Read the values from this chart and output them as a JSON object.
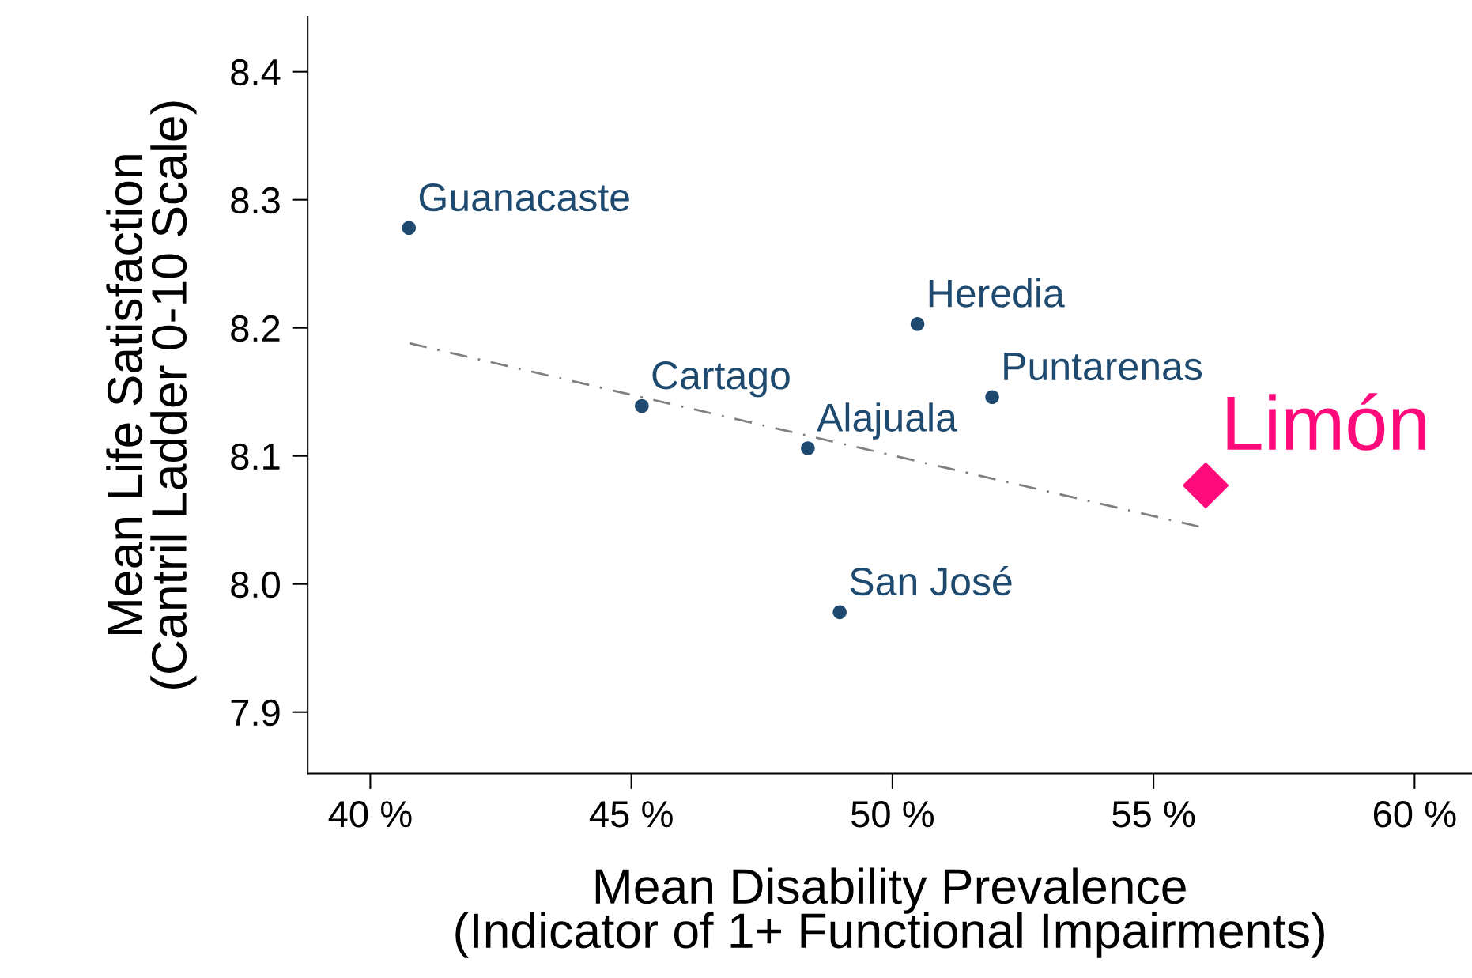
{
  "chart_data": {
    "type": "scatter",
    "xlabel": "Mean Disability Prevalence\n(Indicator of 1+ Functional Impairments)",
    "ylabel": "Mean Life Satisfaction\n(Cantril Ladder 0-10 Scale)",
    "xlim": [
      38.8,
      61.1
    ],
    "ylim": [
      7.852,
      8.443
    ],
    "xticks": [
      {
        "value": 40,
        "label": "40 %"
      },
      {
        "value": 45,
        "label": "45 %"
      },
      {
        "value": 50,
        "label": "50 %"
      },
      {
        "value": 55,
        "label": "55 %"
      },
      {
        "value": 60,
        "label": "60 %"
      }
    ],
    "yticks": [
      {
        "value": 7.9,
        "label": "7.9"
      },
      {
        "value": 8.0,
        "label": "8.0"
      },
      {
        "value": 8.1,
        "label": "8.1"
      },
      {
        "value": 8.2,
        "label": "8.2"
      },
      {
        "value": 8.3,
        "label": "8.3"
      },
      {
        "value": 8.4,
        "label": "8.4"
      }
    ],
    "grid": false,
    "legend": false,
    "series": [
      {
        "color": "#1f4a70",
        "marker": "circle",
        "x": [
          40.74,
          50.48,
          51.91,
          45.2,
          48.38,
          48.99
        ],
        "values": [
          8.278,
          8.203,
          8.146,
          8.139,
          8.106,
          7.978
        ]
      },
      {
        "color": "#ff0a7a",
        "marker": "diamond",
        "x": [
          56.0
        ],
        "values": [
          8.077
        ]
      },
      {
        "type": "line",
        "color": "#808080",
        "line_style": "dashed",
        "marker": "none",
        "x": [
          40.75,
          55.96
        ],
        "values": [
          8.188,
          8.044
        ]
      }
    ],
    "annotations": [
      {
        "text": "Guanacaste",
        "x": 40.74,
        "y": 8.278
      },
      {
        "text": "Heredia",
        "x": 50.48,
        "y": 8.203
      },
      {
        "text": "Puntarenas",
        "x": 51.91,
        "y": 8.146
      },
      {
        "text": "Cartago",
        "x": 45.2,
        "y": 8.139
      },
      {
        "text": "Alajuala",
        "x": 48.38,
        "y": 8.106
      },
      {
        "text": "San José",
        "x": 48.99,
        "y": 7.978
      },
      {
        "text": "Limón",
        "x": 56.0,
        "y": 8.077
      }
    ]
  }
}
